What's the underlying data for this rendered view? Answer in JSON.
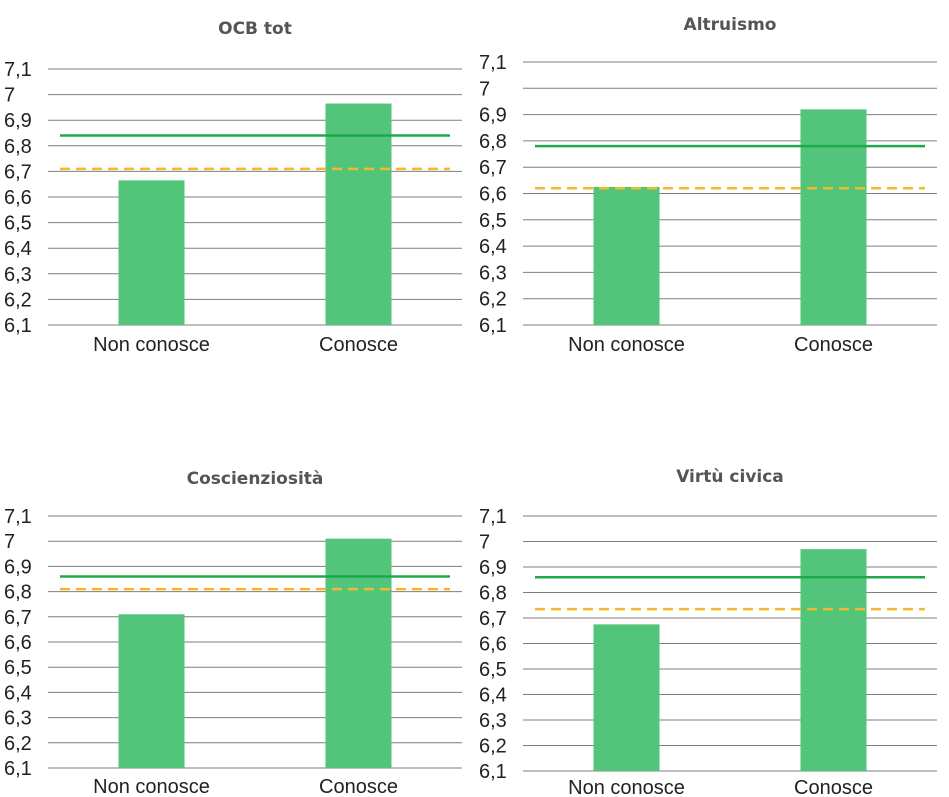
{
  "chart_data": [
    {
      "type": "bar",
      "title": "OCB tot",
      "categories": [
        "Non conosce",
        "Conosce"
      ],
      "values": [
        6.665,
        6.965
      ],
      "ylim": [
        6.1,
        7.1
      ],
      "yticks": [
        "6,1",
        "6,2",
        "6,3",
        "6,4",
        "6,5",
        "6,6",
        "6,7",
        "6,8",
        "6,9",
        "7",
        "7,1"
      ],
      "reference_lines": [
        {
          "style": "solid",
          "color": "#1fa84a",
          "value": 6.84
        },
        {
          "style": "dashed",
          "color": "#f5b731",
          "value": 6.71
        }
      ],
      "bar_color": "#52c57b",
      "grid": true
    },
    {
      "type": "bar",
      "title": "Altruismo",
      "categories": [
        "Non conosce",
        "Conosce"
      ],
      "values": [
        6.625,
        6.92
      ],
      "ylim": [
        6.1,
        7.1
      ],
      "yticks": [
        "6,1",
        "6,2",
        "6,3",
        "6,4",
        "6,5",
        "6,6",
        "6,7",
        "6,8",
        "6,9",
        "7",
        "7,1"
      ],
      "reference_lines": [
        {
          "style": "solid",
          "color": "#1fa84a",
          "value": 6.78
        },
        {
          "style": "dashed",
          "color": "#f5b731",
          "value": 6.62
        }
      ],
      "bar_color": "#52c57b",
      "grid": true
    },
    {
      "type": "bar",
      "title": "Coscienziosità",
      "categories": [
        "Non conosce",
        "Conosce"
      ],
      "values": [
        6.71,
        7.01
      ],
      "ylim": [
        6.1,
        7.1
      ],
      "yticks": [
        "6,1",
        "6,2",
        "6,3",
        "6,4",
        "6,5",
        "6,6",
        "6,7",
        "6,8",
        "6,9",
        "7",
        "7,1"
      ],
      "reference_lines": [
        {
          "style": "solid",
          "color": "#1fa84a",
          "value": 6.86
        },
        {
          "style": "dashed",
          "color": "#f5b731",
          "value": 6.81
        }
      ],
      "bar_color": "#52c57b",
      "grid": true
    },
    {
      "type": "bar",
      "title": "Virtù civica",
      "categories": [
        "Non conosce",
        "Conosce"
      ],
      "values": [
        6.675,
        6.97
      ],
      "ylim": [
        6.1,
        7.1
      ],
      "yticks": [
        "6,1",
        "6,2",
        "6,3",
        "6,4",
        "6,5",
        "6,6",
        "6,7",
        "6,8",
        "6,9",
        "7",
        "7,1"
      ],
      "reference_lines": [
        {
          "style": "solid",
          "color": "#1fa84a",
          "value": 6.86
        },
        {
          "style": "dashed",
          "color": "#f5b731",
          "value": 6.735
        }
      ],
      "bar_color": "#52c57b",
      "grid": true
    }
  ]
}
